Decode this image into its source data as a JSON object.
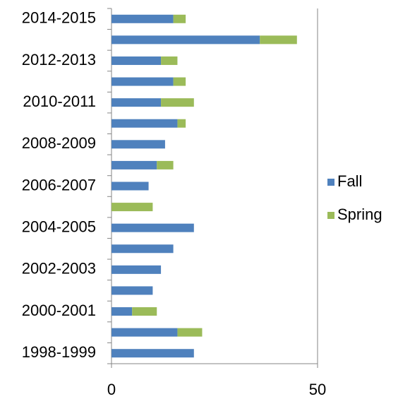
{
  "chart_data": {
    "type": "stacked_barh",
    "categories": [
      "1998-1999",
      null,
      "2000-2001",
      null,
      "2002-2003",
      null,
      "2004-2005",
      null,
      "2006-2007",
      null,
      "2008-2009",
      null,
      "2010-2011",
      null,
      "2012-2013",
      null,
      "2014-2015"
    ],
    "series": [
      {
        "name": "Fall",
        "color": "#4f81bd",
        "values": [
          20,
          16,
          5,
          10,
          12,
          15,
          20,
          0,
          9,
          11,
          13,
          16,
          12,
          15,
          12,
          36,
          15
        ]
      },
      {
        "name": "Spring",
        "color": "#9bbb59",
        "values": [
          0,
          6,
          6,
          0,
          0,
          0,
          0,
          10,
          0,
          4,
          0,
          2,
          8,
          3,
          4,
          9,
          3
        ]
      }
    ],
    "xlim": [
      0,
      50
    ],
    "xticks": [
      0,
      50
    ],
    "grid": true,
    "legend": "right"
  }
}
